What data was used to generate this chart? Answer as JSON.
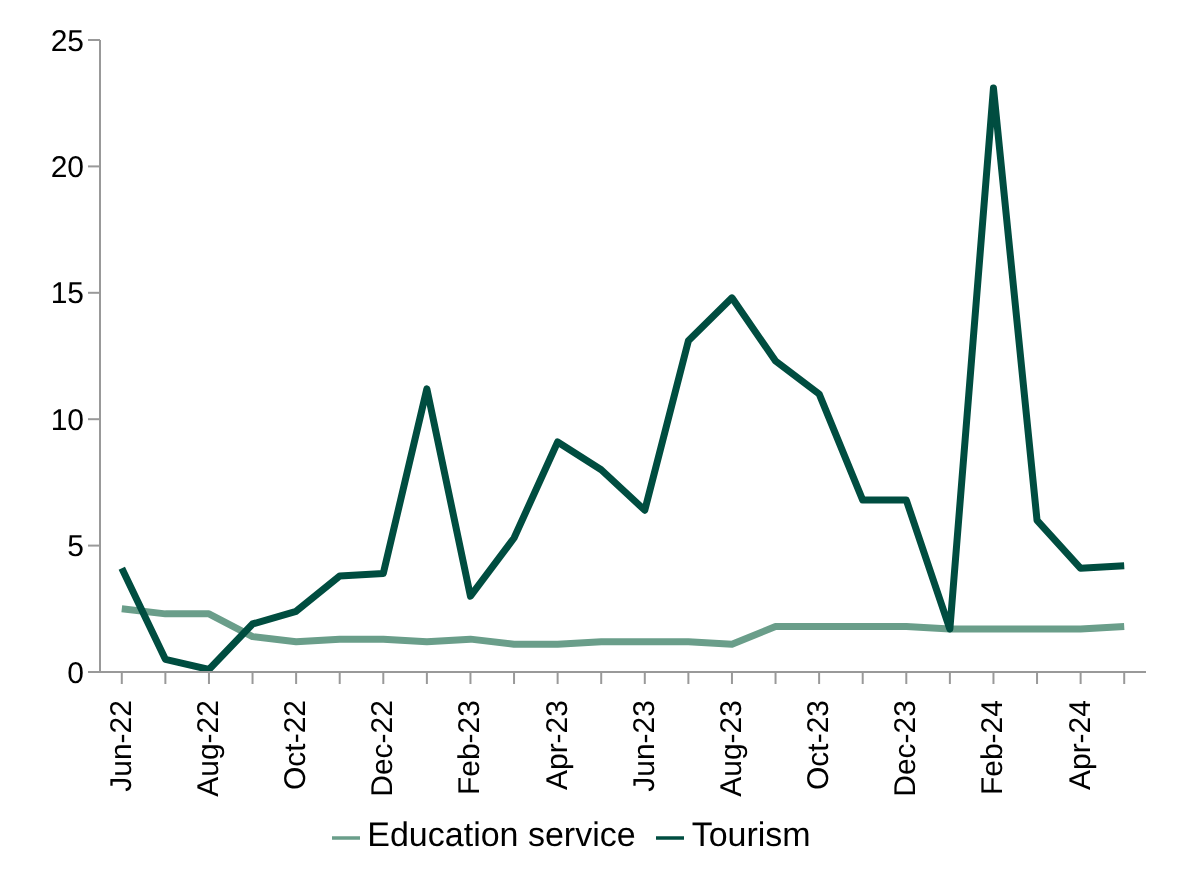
{
  "chart_data": {
    "type": "line",
    "categories": [
      "Jun-22",
      null,
      "Aug-22",
      null,
      "Oct-22",
      null,
      "Dec-22",
      null,
      "Feb-23",
      null,
      "Apr-23",
      null,
      "Jun-23",
      null,
      "Aug-23",
      null,
      "Oct-23",
      null,
      "Dec-23",
      null,
      "Feb-24",
      null,
      "Apr-24",
      null
    ],
    "series": [
      {
        "name": "Education service",
        "color": "#6a9e8a",
        "values": [
          2.5,
          2.3,
          2.3,
          1.4,
          1.2,
          1.3,
          1.3,
          1.2,
          1.3,
          1.1,
          1.1,
          1.2,
          1.2,
          1.2,
          1.1,
          1.8,
          1.8,
          1.8,
          1.8,
          1.7,
          1.7,
          1.7,
          1.7,
          1.8
        ]
      },
      {
        "name": "Tourism",
        "color": "#004d40",
        "values": [
          4.1,
          0.5,
          0.1,
          1.9,
          2.4,
          3.8,
          3.9,
          11.2,
          3.0,
          5.3,
          9.1,
          8.0,
          6.4,
          13.1,
          14.8,
          12.3,
          11.0,
          6.8,
          6.8,
          1.7,
          23.1,
          6.0,
          4.1,
          4.2
        ]
      }
    ],
    "ylim": [
      0,
      25
    ],
    "yticks": [
      0,
      5,
      10,
      15,
      20,
      25
    ],
    "grid": false,
    "legend": "bottom",
    "marker": "none",
    "line_style": "solid"
  }
}
